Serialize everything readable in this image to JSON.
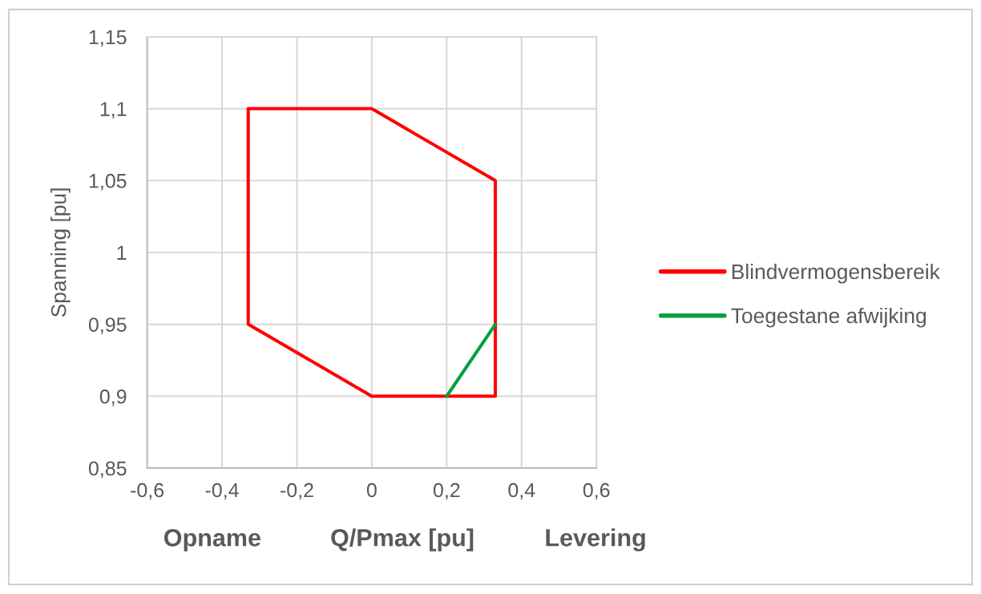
{
  "chart_data": {
    "type": "line",
    "xlabel": "Q/Pmax [pu]",
    "ylabel": "Spanning [pu]",
    "annotations": [
      "Opname",
      "Levering"
    ],
    "series": [
      {
        "name": "Blindvermogensbereik",
        "color": "#ff0000",
        "x": [
          -0.33,
          0,
          0.33,
          0.33,
          0,
          -0.33,
          -0.33,
          0
        ],
        "values": [
          1.1,
          1.1,
          1.05,
          0.9,
          0.9,
          0.95,
          1.1,
          1.1
        ]
      },
      {
        "name": "Toegestane afwijking",
        "color": "#00a03e",
        "x": [
          0.2,
          0.33
        ],
        "values": [
          0.9,
          0.95
        ]
      }
    ],
    "xlim": [
      -0.6,
      0.6
    ],
    "xticks": [
      {
        "value": -0.6,
        "label": "-0,6"
      },
      {
        "value": -0.4,
        "label": "-0,4"
      },
      {
        "value": -0.2,
        "label": "-0,2"
      },
      0,
      {
        "value": 0.2,
        "label": "0,2"
      },
      {
        "value": 0.4,
        "label": "0,4"
      },
      {
        "value": 0.6,
        "label": "0,6"
      }
    ],
    "ylim": [
      0.85,
      1.15
    ],
    "yticks": [
      {
        "value": 0.85,
        "label": "0,85"
      },
      {
        "value": 0.9,
        "label": "0,9"
      },
      {
        "value": 0.95,
        "label": "0,95"
      },
      1,
      {
        "value": 1.05,
        "label": "1,05"
      },
      {
        "value": 1.1,
        "label": "1,1"
      },
      {
        "value": 1.15,
        "label": "1,15"
      }
    ],
    "grid": true,
    "legend": "right",
    "marker": "none",
    "line_style": "solid"
  }
}
